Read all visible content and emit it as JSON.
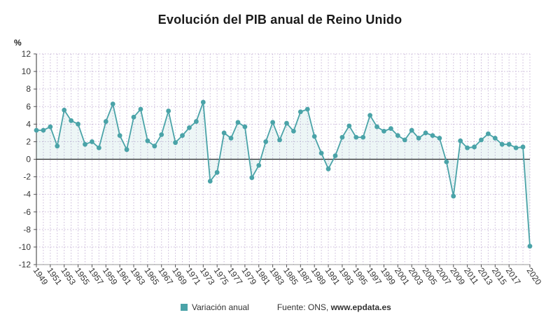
{
  "chart_data": {
    "type": "line",
    "title": "Evolución del PIB anual de Reino Unido",
    "ylabel": "%",
    "xlabel": "",
    "ylim": [
      -12,
      12
    ],
    "yticks": [
      12,
      10,
      8,
      6,
      4,
      2,
      0,
      -2,
      -4,
      -6,
      -8,
      -10,
      -12
    ],
    "xticks": [
      "1949",
      "1951",
      "1953",
      "1955",
      "1957",
      "1959",
      "1961",
      "1963",
      "1965",
      "1967",
      "1969",
      "1971",
      "1973",
      "1975",
      "1977",
      "1979",
      "1981",
      "1983",
      "1985",
      "1987",
      "1989",
      "1991",
      "1993",
      "1995",
      "1997",
      "1999",
      "2001",
      "2003",
      "2005",
      "2007",
      "2009",
      "2011",
      "2013",
      "2015",
      "2017",
      "2020"
    ],
    "grid": true,
    "legend_position": "bottom",
    "series": [
      {
        "name": "Variación anual",
        "color": "#4aa3a8",
        "x": [
          1949,
          1950,
          1951,
          1952,
          1953,
          1954,
          1955,
          1956,
          1957,
          1958,
          1959,
          1960,
          1961,
          1962,
          1963,
          1964,
          1965,
          1966,
          1967,
          1968,
          1969,
          1970,
          1971,
          1972,
          1973,
          1974,
          1975,
          1976,
          1977,
          1978,
          1979,
          1980,
          1981,
          1982,
          1983,
          1984,
          1985,
          1986,
          1987,
          1988,
          1989,
          1990,
          1991,
          1992,
          1993,
          1994,
          1995,
          1996,
          1997,
          1998,
          1999,
          2000,
          2001,
          2002,
          2003,
          2004,
          2005,
          2006,
          2007,
          2008,
          2009,
          2010,
          2011,
          2012,
          2013,
          2014,
          2015,
          2016,
          2017,
          2018,
          2019,
          2020
        ],
        "values": [
          3.3,
          3.3,
          3.7,
          1.5,
          5.6,
          4.4,
          4.0,
          1.7,
          2.0,
          1.3,
          4.3,
          6.3,
          2.7,
          1.1,
          4.8,
          5.7,
          2.1,
          1.5,
          2.8,
          5.5,
          1.9,
          2.7,
          3.6,
          4.3,
          6.5,
          -2.5,
          -1.5,
          3.0,
          2.4,
          4.2,
          3.7,
          -2.1,
          -0.7,
          2.0,
          4.2,
          2.2,
          4.1,
          3.2,
          5.4,
          5.7,
          2.6,
          0.7,
          -1.1,
          0.4,
          2.5,
          3.8,
          2.5,
          2.5,
          5.0,
          3.7,
          3.2,
          3.5,
          2.7,
          2.2,
          3.3,
          2.4,
          3.0,
          2.7,
          2.4,
          -0.3,
          -4.2,
          2.1,
          1.3,
          1.4,
          2.2,
          2.9,
          2.4,
          1.7,
          1.7,
          1.3,
          1.4,
          -9.9
        ]
      }
    ]
  },
  "legend": {
    "label": "Variación anual",
    "color": "#4aa3a8",
    "source_prefix": "Fuente: ONS,",
    "source_site": "www.epdata.es"
  }
}
